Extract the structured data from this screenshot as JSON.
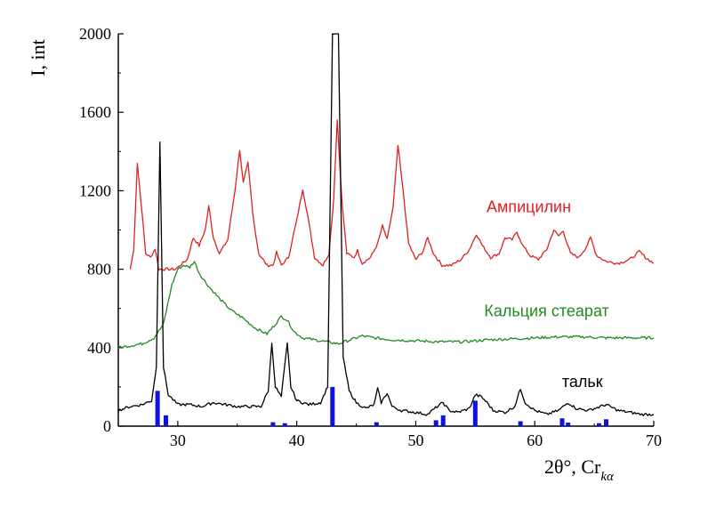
{
  "chart_data": {
    "type": "line",
    "xlabel": "2θ°, Cr",
    "xlabel_subscript": "kα",
    "ylabel": "I, int",
    "xlim": [
      25,
      70
    ],
    "ylim": [
      0,
      2000
    ],
    "x_ticks": [
      30,
      40,
      50,
      60,
      70
    ],
    "y_ticks": [
      0,
      400,
      800,
      1200,
      1600,
      2000
    ],
    "grid": false,
    "legend": "inline labels",
    "series": [
      {
        "name": "Ампицилин",
        "color": "#e02020",
        "points": [
          [
            26.0,
            800
          ],
          [
            26.3,
            900
          ],
          [
            26.6,
            1340
          ],
          [
            26.9,
            1150
          ],
          [
            27.3,
            880
          ],
          [
            27.7,
            860
          ],
          [
            28.1,
            905
          ],
          [
            28.4,
            800
          ],
          [
            29.0,
            800
          ],
          [
            29.8,
            800
          ],
          [
            30.3,
            825
          ],
          [
            30.8,
            850
          ],
          [
            31.3,
            960
          ],
          [
            31.8,
            920
          ],
          [
            32.3,
            1000
          ],
          [
            32.6,
            1120
          ],
          [
            33.0,
            960
          ],
          [
            33.5,
            880
          ],
          [
            34.2,
            950
          ],
          [
            34.8,
            1200
          ],
          [
            35.2,
            1410
          ],
          [
            35.5,
            1240
          ],
          [
            35.9,
            1340
          ],
          [
            36.3,
            1080
          ],
          [
            36.8,
            880
          ],
          [
            37.5,
            820
          ],
          [
            38.0,
            820
          ],
          [
            38.3,
            885
          ],
          [
            38.7,
            820
          ],
          [
            39.3,
            860
          ],
          [
            40.0,
            1050
          ],
          [
            40.5,
            1210
          ],
          [
            40.9,
            1080
          ],
          [
            41.5,
            860
          ],
          [
            42.2,
            820
          ],
          [
            42.7,
            880
          ],
          [
            43.1,
            1150
          ],
          [
            43.4,
            1560
          ],
          [
            43.8,
            1140
          ],
          [
            44.2,
            880
          ],
          [
            44.8,
            860
          ],
          [
            45.1,
            895
          ],
          [
            45.5,
            830
          ],
          [
            46.2,
            860
          ],
          [
            46.8,
            930
          ],
          [
            47.2,
            1020
          ],
          [
            47.6,
            950
          ],
          [
            48.1,
            1120
          ],
          [
            48.5,
            1430
          ],
          [
            48.9,
            1220
          ],
          [
            49.4,
            930
          ],
          [
            50.0,
            850
          ],
          [
            50.6,
            890
          ],
          [
            51.0,
            960
          ],
          [
            51.5,
            880
          ],
          [
            52.2,
            820
          ],
          [
            53.0,
            820
          ],
          [
            53.8,
            850
          ],
          [
            54.5,
            900
          ],
          [
            55.1,
            980
          ],
          [
            55.6,
            920
          ],
          [
            56.3,
            860
          ],
          [
            57.0,
            880
          ],
          [
            57.5,
            960
          ],
          [
            58.1,
            950
          ],
          [
            58.5,
            990
          ],
          [
            59.0,
            920
          ],
          [
            59.6,
            870
          ],
          [
            60.3,
            850
          ],
          [
            61.0,
            900
          ],
          [
            61.6,
            1000
          ],
          [
            62.0,
            970
          ],
          [
            62.4,
            995
          ],
          [
            63.0,
            880
          ],
          [
            63.7,
            860
          ],
          [
            64.3,
            910
          ],
          [
            64.7,
            960
          ],
          [
            65.2,
            870
          ],
          [
            66.0,
            840
          ],
          [
            67.0,
            830
          ],
          [
            68.0,
            850
          ],
          [
            68.8,
            890
          ],
          [
            69.3,
            860
          ],
          [
            70.0,
            830
          ]
        ]
      },
      {
        "name": "Кальция стеарат",
        "color": "#208a20",
        "points": [
          [
            25.0,
            400
          ],
          [
            26.0,
            410
          ],
          [
            27.0,
            420
          ],
          [
            28.0,
            450
          ],
          [
            28.8,
            520
          ],
          [
            29.5,
            720
          ],
          [
            30.0,
            800
          ],
          [
            30.5,
            820
          ],
          [
            31.0,
            810
          ],
          [
            31.4,
            840
          ],
          [
            31.8,
            780
          ],
          [
            32.5,
            720
          ],
          [
            33.5,
            650
          ],
          [
            34.5,
            590
          ],
          [
            35.5,
            550
          ],
          [
            36.5,
            500
          ],
          [
            37.5,
            470
          ],
          [
            38.2,
            520
          ],
          [
            38.7,
            560
          ],
          [
            39.2,
            540
          ],
          [
            39.8,
            480
          ],
          [
            40.5,
            450
          ],
          [
            41.5,
            440
          ],
          [
            42.5,
            430
          ],
          [
            43.5,
            420
          ],
          [
            44.5,
            440
          ],
          [
            45.5,
            460
          ],
          [
            46.5,
            450
          ],
          [
            48.0,
            440
          ],
          [
            50.0,
            435
          ],
          [
            52.0,
            430
          ],
          [
            54.0,
            430
          ],
          [
            56.0,
            440
          ],
          [
            58.0,
            445
          ],
          [
            60.0,
            450
          ],
          [
            62.0,
            455
          ],
          [
            64.0,
            455
          ],
          [
            66.0,
            450
          ],
          [
            68.0,
            450
          ],
          [
            70.0,
            450
          ]
        ]
      },
      {
        "name": "тальк",
        "color": "#000000",
        "points": [
          [
            25.0,
            80
          ],
          [
            26.0,
            100
          ],
          [
            27.0,
            110
          ],
          [
            27.8,
            130
          ],
          [
            28.2,
            300
          ],
          [
            28.5,
            1450
          ],
          [
            28.8,
            300
          ],
          [
            29.2,
            160
          ],
          [
            30.0,
            110
          ],
          [
            31.0,
            110
          ],
          [
            32.0,
            100
          ],
          [
            33.0,
            120
          ],
          [
            34.0,
            110
          ],
          [
            35.0,
            100
          ],
          [
            36.0,
            100
          ],
          [
            37.0,
            100
          ],
          [
            37.6,
            180
          ],
          [
            37.9,
            425
          ],
          [
            38.2,
            200
          ],
          [
            38.7,
            150
          ],
          [
            39.2,
            420
          ],
          [
            39.5,
            200
          ],
          [
            40.0,
            130
          ],
          [
            41.0,
            110
          ],
          [
            42.0,
            120
          ],
          [
            42.6,
            200
          ],
          [
            43.0,
            2000
          ],
          [
            43.5,
            2000
          ],
          [
            43.9,
            350
          ],
          [
            44.4,
            180
          ],
          [
            45.0,
            120
          ],
          [
            45.8,
            90
          ],
          [
            46.5,
            110
          ],
          [
            46.8,
            190
          ],
          [
            47.1,
            120
          ],
          [
            47.6,
            170
          ],
          [
            48.0,
            100
          ],
          [
            48.8,
            80
          ],
          [
            50.0,
            70
          ],
          [
            51.0,
            60
          ],
          [
            51.8,
            100
          ],
          [
            52.3,
            120
          ],
          [
            52.8,
            80
          ],
          [
            53.5,
            70
          ],
          [
            54.5,
            90
          ],
          [
            55.0,
            160
          ],
          [
            55.5,
            150
          ],
          [
            56.0,
            120
          ],
          [
            56.5,
            80
          ],
          [
            57.5,
            70
          ],
          [
            58.3,
            100
          ],
          [
            58.8,
            190
          ],
          [
            59.2,
            120
          ],
          [
            60.0,
            80
          ],
          [
            61.0,
            60
          ],
          [
            62.0,
            80
          ],
          [
            62.8,
            120
          ],
          [
            63.5,
            90
          ],
          [
            64.5,
            80
          ],
          [
            65.5,
            100
          ],
          [
            66.0,
            110
          ],
          [
            67.0,
            80
          ],
          [
            68.0,
            70
          ],
          [
            69.0,
            60
          ],
          [
            70.0,
            60
          ]
        ]
      }
    ],
    "reference_bars": {
      "color": "#1010e0",
      "positions": [
        [
          28.3,
          180
        ],
        [
          29.0,
          55
        ],
        [
          38.0,
          20
        ],
        [
          39.0,
          15
        ],
        [
          43.0,
          200
        ],
        [
          46.7,
          20
        ],
        [
          51.7,
          30
        ],
        [
          52.3,
          55
        ],
        [
          55.0,
          130
        ],
        [
          58.8,
          25
        ],
        [
          62.3,
          40
        ],
        [
          62.8,
          18
        ],
        [
          65.4,
          15
        ],
        [
          66.0,
          35
        ]
      ]
    },
    "annotations": [
      {
        "text": "Ампицилин",
        "x": 59.5,
        "y": 1090,
        "color": "#e02020"
      },
      {
        "text": "Кальция стеарат",
        "x": 61.0,
        "y": 560,
        "color": "#208a20"
      },
      {
        "text": "тальк",
        "x": 64.0,
        "y": 200,
        "color": "#000000"
      }
    ]
  }
}
